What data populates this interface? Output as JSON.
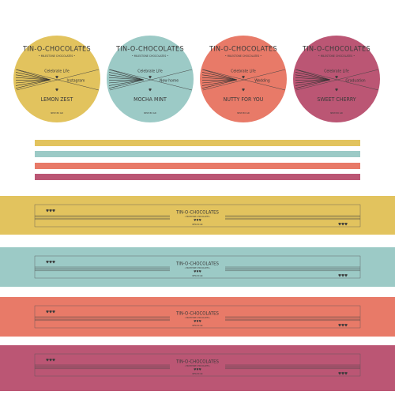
{
  "brand": "TIN-O-CHOCOLATES",
  "subtitle": "• MILESTONE CHOCOLATES •",
  "tagline": "Celebrate Life",
  "heart": "♥",
  "hearts": "♥♥♥",
  "footer": "NEW 80 GR",
  "labels": [
    {
      "color": "#e2c35e",
      "occasion": "Instagram",
      "flavor": "LEMON ZEST"
    },
    {
      "color": "#9ccac6",
      "occasion": "New home",
      "flavor": "MOCHA MINT"
    },
    {
      "color": "#e87a68",
      "occasion": "Wedding",
      "flavor": "NUTTY FOR YOU"
    },
    {
      "color": "#bb5674",
      "occasion": "Graduation",
      "flavor": "SWEET CHERRY"
    }
  ]
}
